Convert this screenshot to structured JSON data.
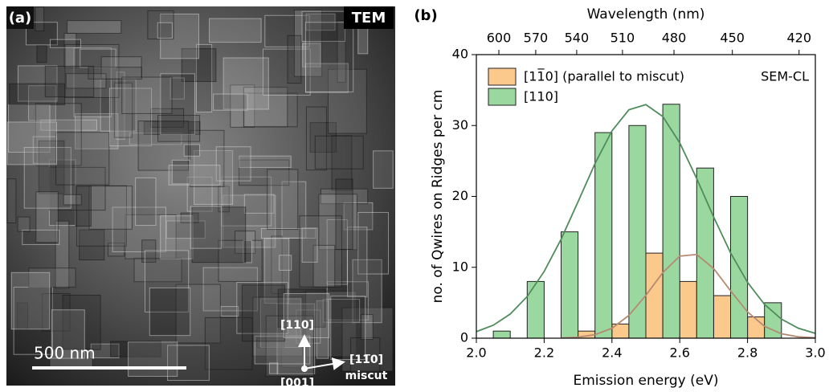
{
  "panel_a": {
    "label": "(a)",
    "method": "TEM",
    "scale_bar": "500 nm",
    "dir_up": "[110]",
    "dir_right": "[11̅0]",
    "dir_right_note": "miscut",
    "dir_out": "[001]"
  },
  "chart_data": {
    "type": "bar",
    "panel_label": "(b)",
    "x_label": "Emission energy (eV)",
    "y_label": "no. of Qwires on Ridges per cm",
    "x2_label": "Wavelength (nm)",
    "annotation": "SEM-CL",
    "xlim": [
      2.0,
      3.0
    ],
    "xticks": [
      {
        "value": 2.0,
        "label": "2.0"
      },
      {
        "value": 2.2,
        "label": "2.2"
      },
      {
        "value": 2.4,
        "label": "2.4"
      },
      {
        "value": 2.6,
        "label": "2.6"
      },
      {
        "value": 2.8,
        "label": "2.8"
      },
      {
        "value": 3.0,
        "label": "3.0"
      }
    ],
    "ylim": [
      0,
      40
    ],
    "yticks": [
      0,
      10,
      20,
      30,
      40
    ],
    "x2ticks": [
      600,
      570,
      540,
      510,
      480,
      450,
      420
    ],
    "bar_width": 0.05,
    "legend": "upper left",
    "series": [
      {
        "name": "[11̅0] (parallel to miscut)",
        "color": "#fcc98d",
        "x": [
          2.325,
          2.425,
          2.525,
          2.625,
          2.725,
          2.825
        ],
        "values": [
          1,
          2,
          12,
          8,
          6,
          3
        ]
      },
      {
        "name": "[110]",
        "color": "#9bd8a0",
        "x": [
          2.075,
          2.175,
          2.275,
          2.375,
          2.475,
          2.575,
          2.675,
          2.775,
          2.875
        ],
        "values": [
          1,
          8,
          15,
          29,
          30,
          33,
          24,
          20,
          5
        ]
      }
    ],
    "fits": [
      {
        "color": "#b58a72",
        "x": [
          2.25,
          2.3,
          2.35,
          2.4,
          2.45,
          2.5,
          2.55,
          2.6,
          2.65,
          2.7,
          2.75,
          2.8,
          2.85,
          2.9,
          2.95,
          3.0
        ],
        "values": [
          0.03,
          0.14,
          0.49,
          1.4,
          3.22,
          6.04,
          9.25,
          11.57,
          11.81,
          9.83,
          6.68,
          3.71,
          1.68,
          0.62,
          0.19,
          0.05
        ]
      },
      {
        "color": "#4f8c5c",
        "x": [
          2.0,
          2.05,
          2.1,
          2.15,
          2.2,
          2.25,
          2.3,
          2.35,
          2.4,
          2.45,
          2.5,
          2.55,
          2.6,
          2.65,
          2.7,
          2.75,
          2.8,
          2.85,
          2.9,
          2.95,
          3.0
        ],
        "values": [
          0.92,
          1.83,
          3.41,
          5.88,
          9.41,
          13.96,
          19.25,
          24.63,
          29.24,
          32.22,
          32.95,
          31.28,
          27.55,
          22.52,
          17.09,
          12.03,
          7.87,
          4.77,
          2.69,
          1.4,
          0.68
        ]
      }
    ]
  }
}
